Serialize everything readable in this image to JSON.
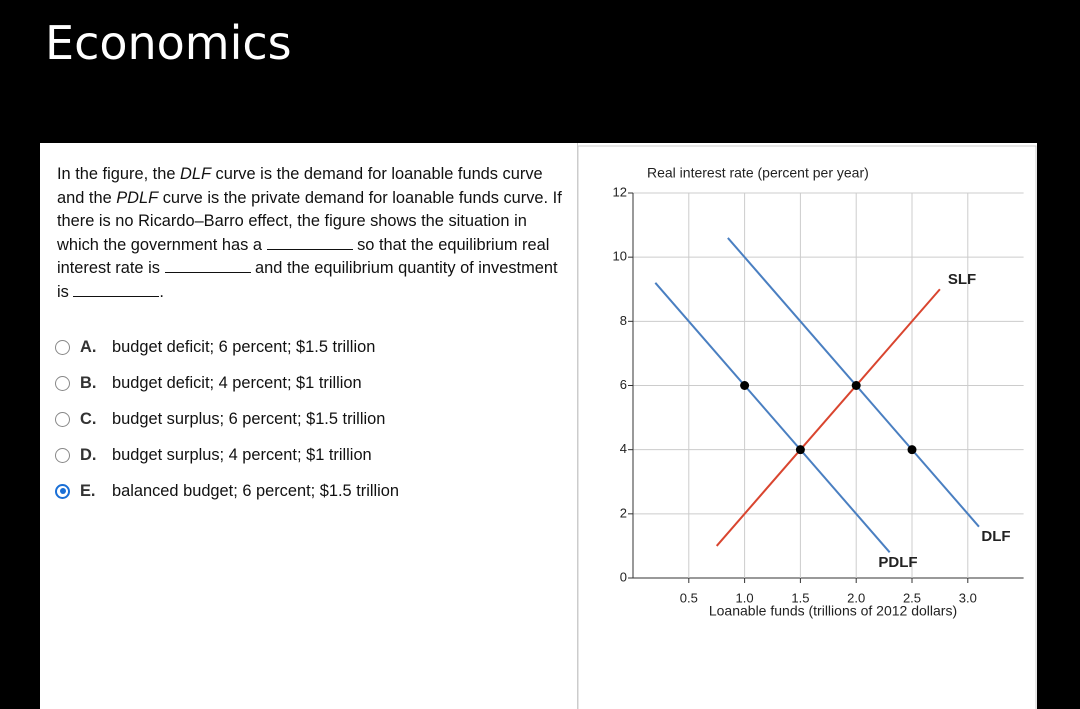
{
  "header": {
    "title": "Economics"
  },
  "question": [
    "In the figure, the ",
    "DLF",
    " curve is the demand for loanable funds curve and the ",
    "PDLF",
    " curve is the private demand for loanable funds curve. If there is no Ricardo–Barro effect, the figure shows the situation in which the government has a ",
    " so that the equilibrium real interest rate is ",
    " and the equilibrium quantity of investment is ",
    "."
  ],
  "options": [
    {
      "letter": "A.",
      "text": "budget deficit; 6 percent; $1.5 trillion"
    },
    {
      "letter": "B.",
      "text": "budget deficit; 4 percent; $1 trillion"
    },
    {
      "letter": "C.",
      "text": "budget surplus; 6 percent; $1.5 trillion"
    },
    {
      "letter": "D.",
      "text": "budget surplus; 4 percent; $1 trillion"
    },
    {
      "letter": "E.",
      "text": "balanced budget; 6 percent; $1.5 trillion"
    }
  ],
  "selected": 4,
  "chart_data": {
    "type": "line",
    "y_label": "Real interest rate (percent per year)",
    "x_label": "Loanable funds (trillions of 2012 dollars)",
    "xlim": [
      0,
      3.5
    ],
    "xticks": [
      0.5,
      {
        "value": 1,
        "label": "1.0"
      },
      1.5,
      {
        "value": 2,
        "label": "2.0"
      },
      2.5,
      {
        "value": 3,
        "label": "3.0"
      }
    ],
    "ylim": [
      0,
      12
    ],
    "yticks": [
      0,
      2,
      4,
      6,
      8,
      10,
      12
    ],
    "grid": true,
    "series": [
      {
        "name": "SLF",
        "color": "#d9452f",
        "x": [
          0.75,
          2.75
        ],
        "values": [
          1,
          9
        ]
      },
      {
        "name": "DLF",
        "color": "#4a7fc1",
        "x": [
          0.85,
          3.1
        ],
        "values": [
          10.6,
          1.6
        ]
      },
      {
        "name": "PDLF",
        "color": "#4a7fc1",
        "x": [
          0.2,
          2.3
        ],
        "values": [
          9.2,
          0.8
        ]
      }
    ],
    "markers": {
      "color": "#000000",
      "x": [
        1,
        1.5,
        2,
        2.5
      ],
      "values": [
        6,
        4,
        6,
        4
      ]
    }
  }
}
